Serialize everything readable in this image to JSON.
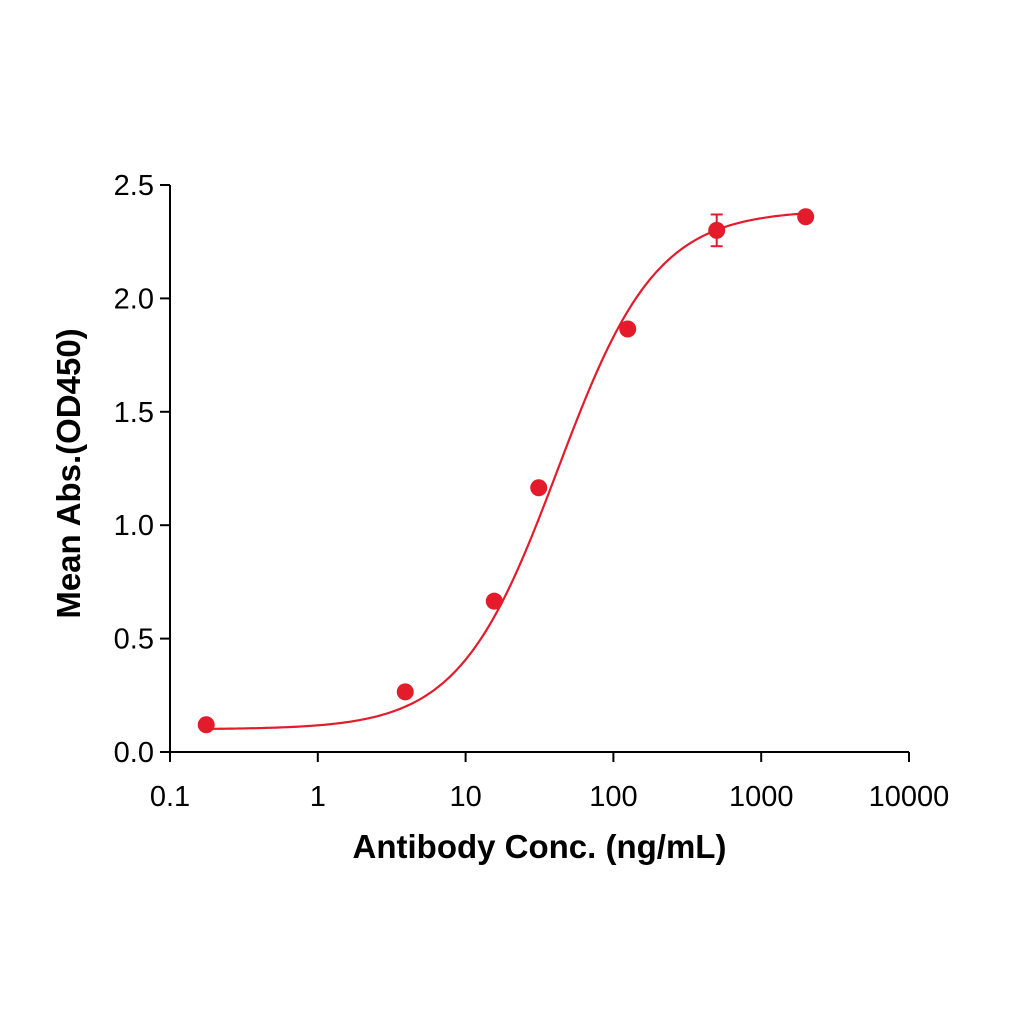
{
  "chart_data": {
    "type": "scatter",
    "title": "",
    "xlabel": "Antibody Conc. (ng/mL)",
    "ylabel": "Mean Abs.(OD450)",
    "xscale": "log",
    "xlim": [
      0.1,
      10000
    ],
    "ylim": [
      0.0,
      2.5
    ],
    "xticks": [
      0.1,
      1,
      10,
      100,
      1000,
      10000
    ],
    "xtick_labels": [
      "0.1",
      "1",
      "10",
      "100",
      "1000",
      "10000"
    ],
    "yticks": [
      0.0,
      0.5,
      1.0,
      1.5,
      2.0,
      2.5
    ],
    "ytick_labels": [
      "0.0",
      "0.5",
      "1.0",
      "1.5",
      "2.0",
      "2.5"
    ],
    "grid": false,
    "legend": "none",
    "color": "#e31b2b",
    "series": [
      {
        "points": [
          {
            "x": 0.1758,
            "y": 0.12,
            "err": 0
          },
          {
            "x": 3.906,
            "y": 0.265,
            "err": 0
          },
          {
            "x": 15.63,
            "y": 0.665,
            "err": 0
          },
          {
            "x": 31.25,
            "y": 1.165,
            "err": 0
          },
          {
            "x": 125,
            "y": 1.865,
            "err": 0
          },
          {
            "x": 500,
            "y": 2.3,
            "err": 0.07
          },
          {
            "x": 2000,
            "y": 2.36,
            "err": 0
          }
        ],
        "fit": {
          "model": "4PL",
          "bottom": 0.1,
          "top": 2.39,
          "ec50": 42,
          "hill": 1.3
        }
      }
    ]
  }
}
